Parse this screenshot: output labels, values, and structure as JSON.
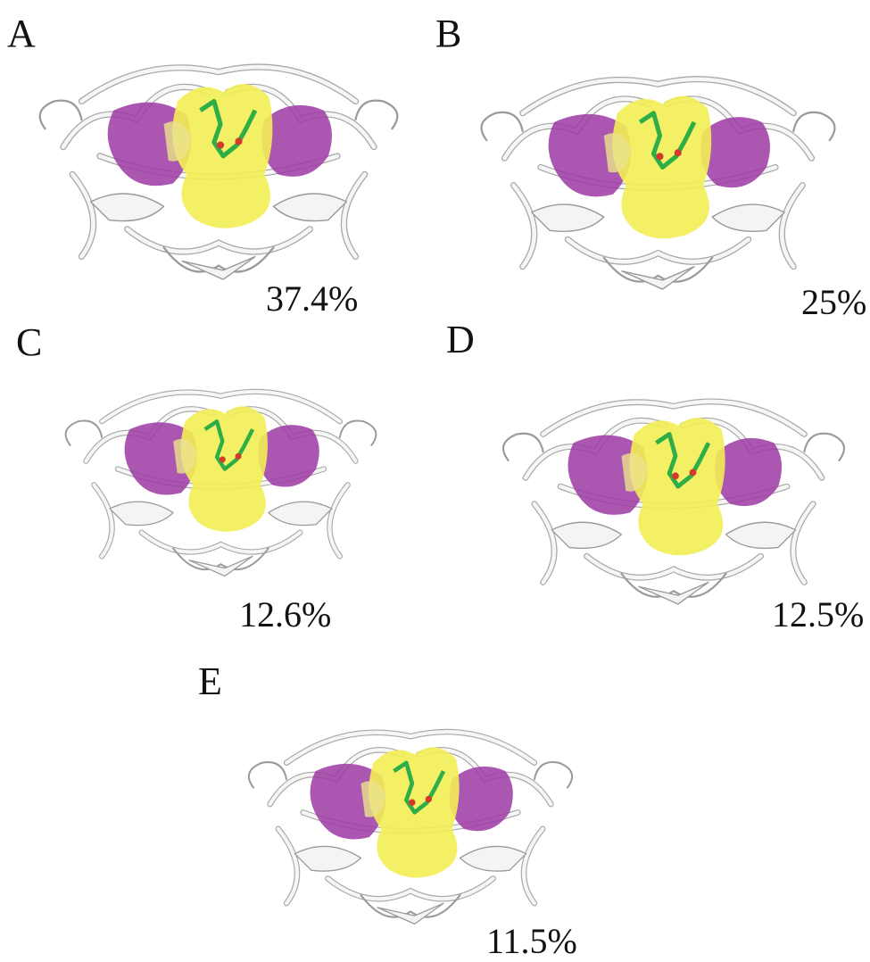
{
  "panels": [
    {
      "label": "A",
      "percent": "37.4%"
    },
    {
      "label": "B",
      "percent": "25%"
    },
    {
      "label": "C",
      "percent": "12.6%"
    },
    {
      "label": "D",
      "percent": "12.5%"
    },
    {
      "label": "E",
      "percent": "11.5%"
    }
  ]
}
